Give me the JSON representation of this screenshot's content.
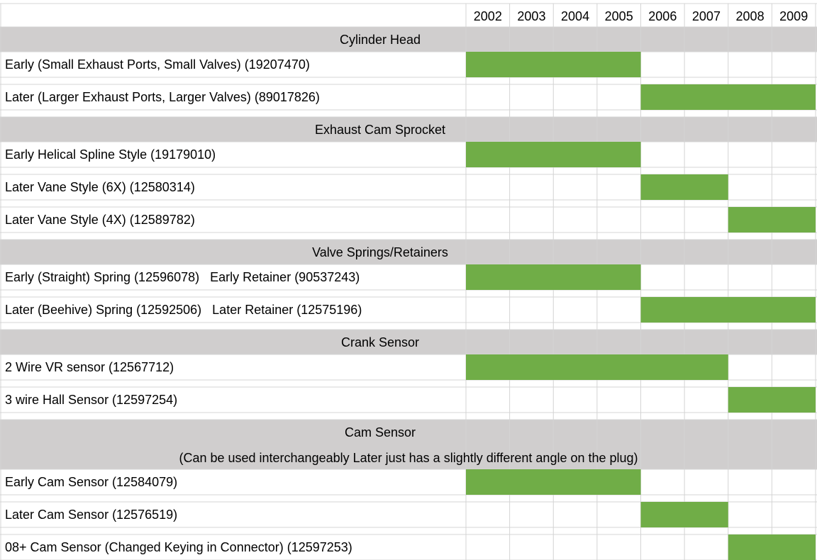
{
  "years": [
    2002,
    2003,
    2004,
    2005,
    2006,
    2007,
    2008,
    2009
  ],
  "sections": [
    {
      "title": "Cylinder Head",
      "rows": [
        {
          "label": "Early (Small Exhaust Ports, Small Valves) (19207470)",
          "from": 2002,
          "to": 2005
        },
        {
          "label": "Later (Larger Exhaust Ports, Larger Valves) (89017826)",
          "from": 2006,
          "to": 2009
        }
      ]
    },
    {
      "title": "Exhaust Cam Sprocket",
      "rows": [
        {
          "label": "Early Helical Spline Style (19179010)",
          "from": 2002,
          "to": 2005
        },
        {
          "label": "Later Vane Style (6X) (12580314)",
          "from": 2006,
          "to": 2007
        },
        {
          "label": "Later Vane Style (4X) (12589782)",
          "from": 2008,
          "to": 2009
        }
      ]
    },
    {
      "title": "Valve Springs/Retainers",
      "rows": [
        {
          "label": "Early (Straight) Spring (12596078)   Early Retainer (90537243)",
          "from": 2002,
          "to": 2005
        },
        {
          "label": "Later (Beehive) Spring (12592506)   Later Retainer (12575196)",
          "from": 2006,
          "to": 2009
        }
      ]
    },
    {
      "title": "Crank Sensor",
      "rows": [
        {
          "label": "2 Wire VR sensor (12567712)",
          "from": 2002,
          "to": 2007
        },
        {
          "label": "3 wire Hall Sensor (12597254)",
          "from": 2008,
          "to": 2009
        }
      ]
    },
    {
      "title": "Cam Sensor",
      "note": "(Can be used interchangeably Later just has a slightly different angle on the plug)",
      "rows": [
        {
          "label": "Early Cam Sensor (12584079)",
          "from": 2002,
          "to": 2005
        },
        {
          "label": "Later Cam Sensor (12576519)",
          "from": 2006,
          "to": 2007
        },
        {
          "label": "08+ Cam Sensor (Changed Keying in Connector) (12597253)",
          "from": 2008,
          "to": 2009
        }
      ]
    }
  ]
}
